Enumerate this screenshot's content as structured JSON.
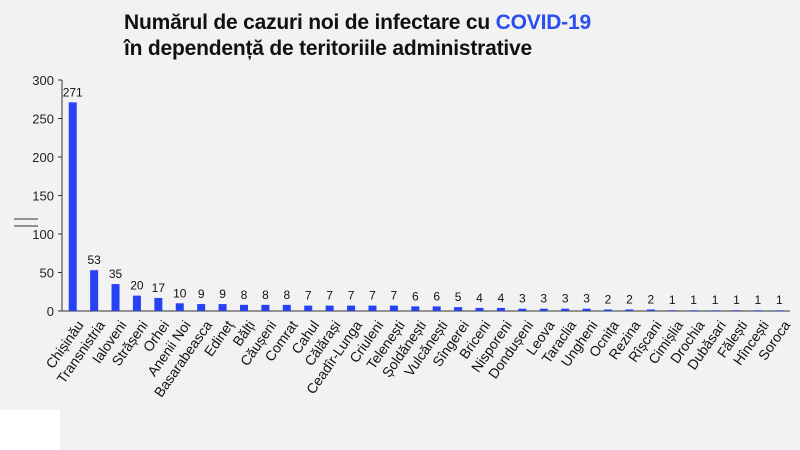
{
  "title": {
    "line1_prefix": "Numărul de cazuri noi de infectare cu ",
    "line1_accent": "COVID-19",
    "line2": "în dependență de teritoriile administrative"
  },
  "colors": {
    "bar": "#2742f5",
    "accent": "#2b4ef0",
    "background": "#f2f2f2"
  },
  "chart_data": {
    "type": "bar",
    "ylim": [
      0,
      300
    ],
    "yticks": [
      0,
      50,
      100,
      150,
      200,
      250,
      300
    ],
    "grid": false,
    "categories": [
      "Chișinău",
      "Transnistria",
      "Ialoveni",
      "Strășeni",
      "Orhei",
      "Anenii Noi",
      "Basarabeasca",
      "Edineț",
      "Bălți",
      "Căușeni",
      "Comrat",
      "Cahul",
      "Călărași",
      "Ceadîr-Lunga",
      "Criuleni",
      "Telenești",
      "Șoldănești",
      "Vulcănești",
      "Sîngerei",
      "Briceni",
      "Nisporeni",
      "Dondușeni",
      "Leova",
      "Taraclia",
      "Ungheni",
      "Ocnița",
      "Rezina",
      "Rîșcani",
      "Cimișlia",
      "Drochia",
      "Dubăsari",
      "Fălești",
      "Hîncești",
      "Soroca"
    ],
    "values": [
      271,
      53,
      35,
      20,
      17,
      10,
      9,
      9,
      8,
      8,
      8,
      7,
      7,
      7,
      7,
      7,
      6,
      6,
      5,
      4,
      4,
      3,
      3,
      3,
      3,
      2,
      2,
      2,
      1,
      1,
      1,
      1,
      1,
      1
    ]
  }
}
